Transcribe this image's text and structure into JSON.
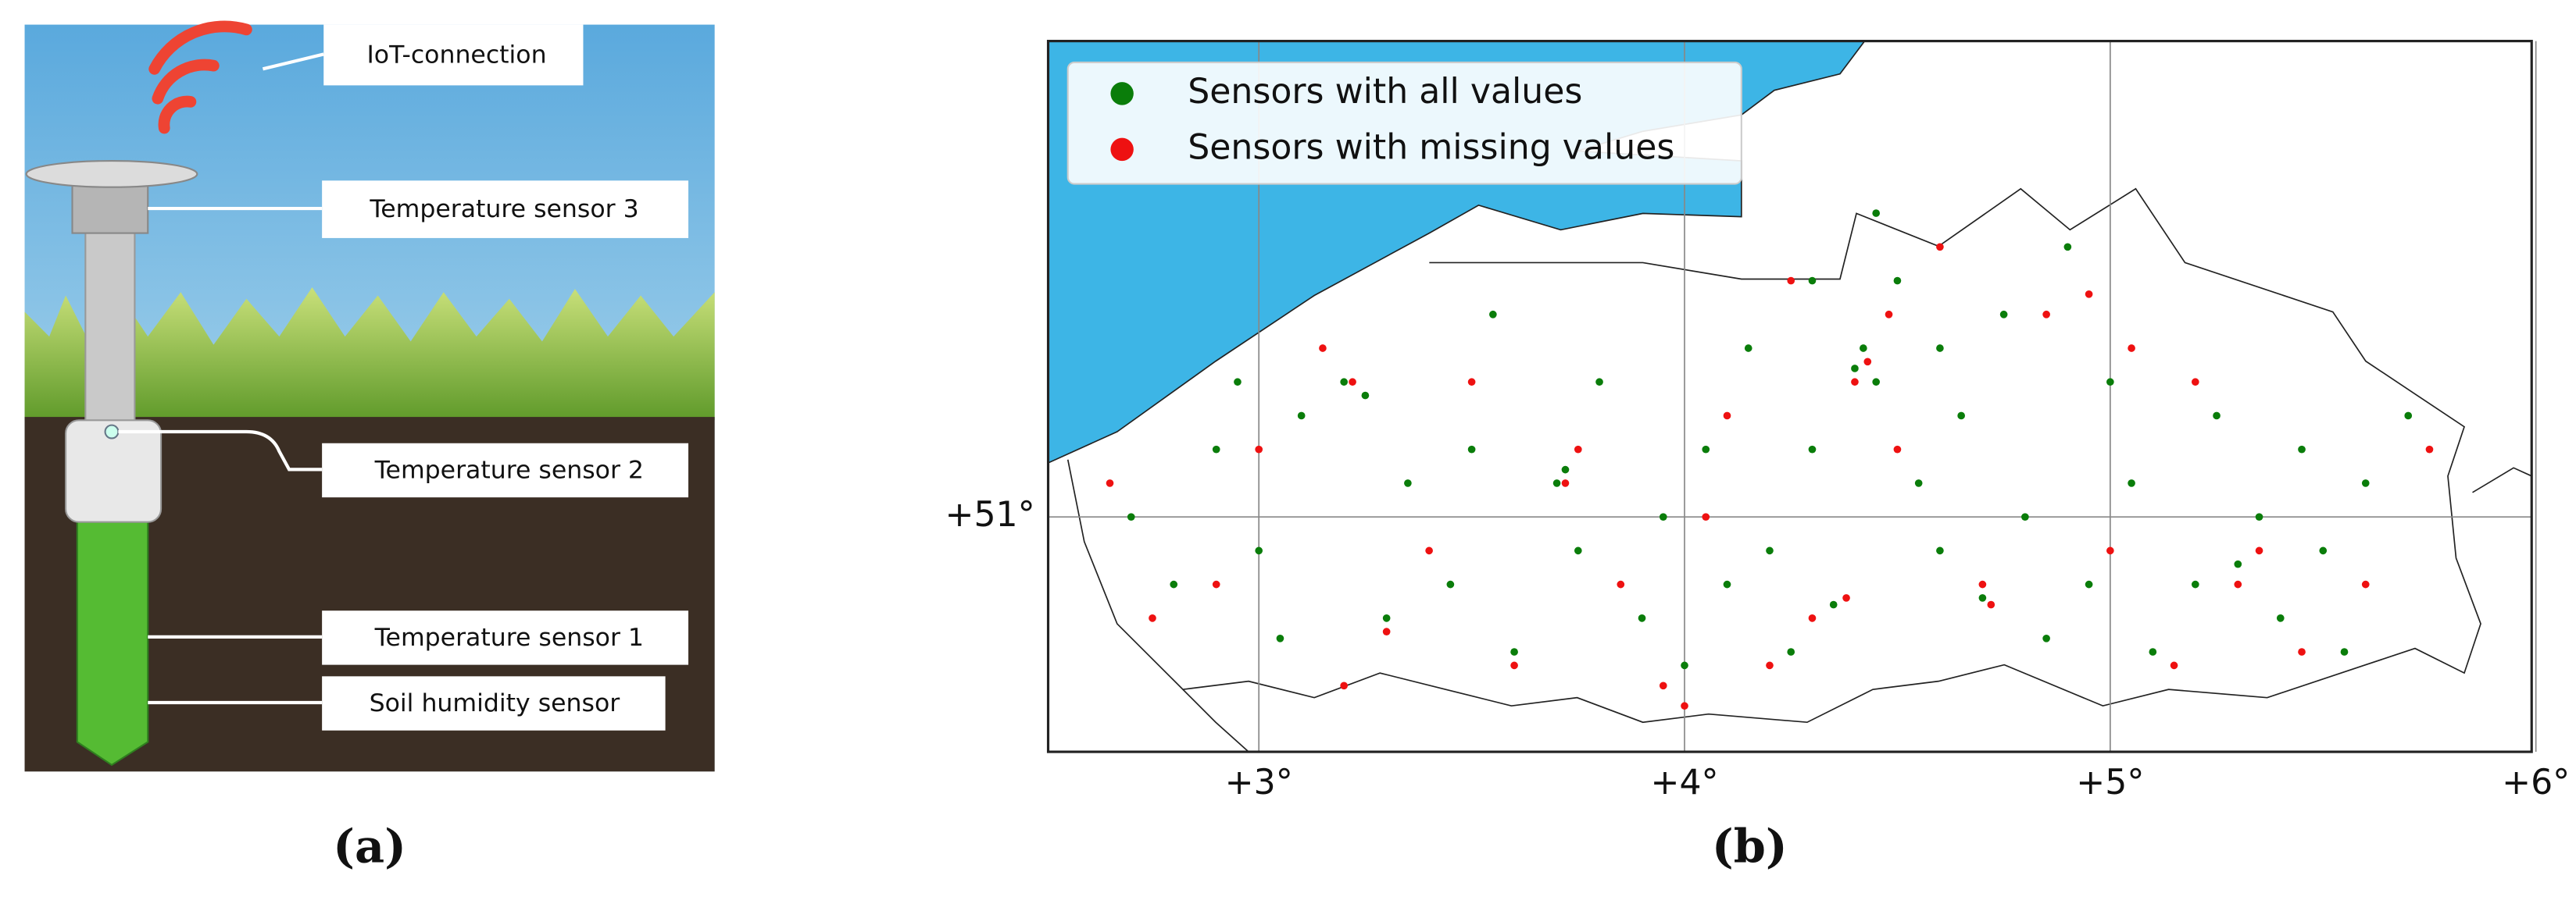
{
  "panel_a": {
    "labels": [
      "IoT-connection",
      "Temperature sensor 3",
      "Temperature sensor 2",
      "Temperature sensor 1",
      "Soil humidity sensor"
    ],
    "caption": "(a)"
  },
  "panel_b_caption": "(b)",
  "chart_data": {
    "type": "scatter",
    "xlim": [
      2.505,
      5.99
    ],
    "ylim": [
      50.652,
      51.705
    ],
    "xticks": [
      {
        "value": 3,
        "label": "+3°"
      },
      {
        "value": 4,
        "label": "+4°"
      },
      {
        "value": 5,
        "label": "+5°"
      },
      {
        "value": 6,
        "label": "+6°"
      }
    ],
    "yticks": [
      {
        "value": 51,
        "label": "+51°"
      }
    ],
    "grid": true,
    "legend": "upper left",
    "series": [
      {
        "name": "Sensors with all values",
        "color": "#0a7d0a",
        "x": [
          2.7,
          2.8,
          2.9,
          3.0,
          3.1,
          3.2,
          3.25,
          3.3,
          3.35,
          3.45,
          3.5,
          3.6,
          3.7,
          3.72,
          3.75,
          3.8,
          3.9,
          3.95,
          4.0,
          4.05,
          4.1,
          4.15,
          4.2,
          4.25,
          4.3,
          4.35,
          4.4,
          4.42,
          4.45,
          4.5,
          4.55,
          4.6,
          4.65,
          4.7,
          4.75,
          4.8,
          4.9,
          4.95,
          5.0,
          5.05,
          5.1,
          5.2,
          5.25,
          5.3,
          5.35,
          5.4,
          5.45,
          5.5,
          5.6,
          5.7,
          4.45,
          4.3,
          3.55,
          2.95,
          3.05,
          4.85,
          5.55,
          4.6
        ],
        "y": [
          51.0,
          50.9,
          51.1,
          50.95,
          51.15,
          51.2,
          51.18,
          50.85,
          51.05,
          50.9,
          51.1,
          50.8,
          51.05,
          51.07,
          50.95,
          51.2,
          50.85,
          51.0,
          50.78,
          51.1,
          50.9,
          51.25,
          50.95,
          50.8,
          51.1,
          50.87,
          51.22,
          51.25,
          51.2,
          51.35,
          51.05,
          50.95,
          51.15,
          50.88,
          51.3,
          51.0,
          51.4,
          50.9,
          51.2,
          51.05,
          50.8,
          50.9,
          51.15,
          50.93,
          51.0,
          50.85,
          51.1,
          50.95,
          51.05,
          51.15,
          51.45,
          51.35,
          51.3,
          51.2,
          50.82,
          50.82,
          50.8,
          51.25
        ]
      },
      {
        "name": "Sensors with missing values",
        "color": "#ee1111",
        "x": [
          2.65,
          2.75,
          2.9,
          3.0,
          3.15,
          3.22,
          3.3,
          3.4,
          3.6,
          3.72,
          3.75,
          3.85,
          3.95,
          4.05,
          4.1,
          4.2,
          4.3,
          4.38,
          4.4,
          4.43,
          4.48,
          4.5,
          4.6,
          4.7,
          4.72,
          4.85,
          4.95,
          5.0,
          5.15,
          5.2,
          5.3,
          5.35,
          5.45,
          5.6,
          5.75,
          3.2,
          4.0,
          4.25,
          3.5,
          5.05
        ],
        "y": [
          51.05,
          50.85,
          50.9,
          51.1,
          51.25,
          51.2,
          50.83,
          50.95,
          50.78,
          51.05,
          51.1,
          50.9,
          50.75,
          51.0,
          51.15,
          50.78,
          50.85,
          50.88,
          51.2,
          51.23,
          51.3,
          51.1,
          51.4,
          50.9,
          50.87,
          51.3,
          51.33,
          50.95,
          50.78,
          51.2,
          50.9,
          50.95,
          50.8,
          50.9,
          51.1,
          50.75,
          50.72,
          51.35,
          51.2,
          51.25
        ]
      }
    ]
  }
}
